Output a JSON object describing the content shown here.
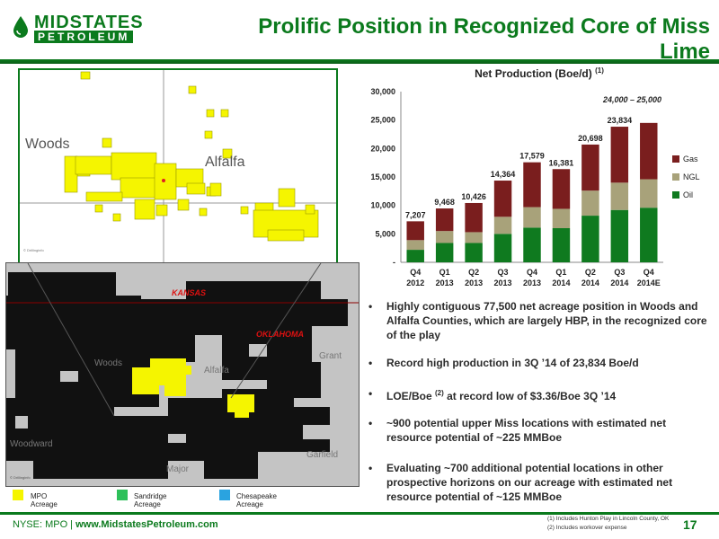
{
  "header": {
    "logo_line1": "MIDSTATES",
    "logo_line2": "PETROLEUM",
    "title": "Prolific Position in Recognized Core of Miss Lime"
  },
  "map_top": {
    "label_woods": "Woods",
    "label_alfalfa": "Alfalfa"
  },
  "map_bottom": {
    "label_kansas": "KANSAS",
    "label_oklahoma": "OKLAHOMA",
    "label_woods": "Woods",
    "label_alfalfa": "Alfalfa",
    "label_grant": "Grant",
    "label_woodward": "Woodward",
    "label_major": "Major",
    "label_garfield": "Garfield"
  },
  "legend": {
    "items": [
      {
        "label": "MPO Acreage",
        "color": "#f5f500"
      },
      {
        "label": "Sandridge  Acreage",
        "color": "#2ec05a"
      },
      {
        "label": "Chesapeake Acreage",
        "color": "#2aa3e0"
      }
    ]
  },
  "colors": {
    "brand_green": "#0b7a1d",
    "gas": "#7a1e1e",
    "ngl": "#a8a27a",
    "oil": "#0f7a1f"
  },
  "chart_data": {
    "type": "bar",
    "stacked": true,
    "title": "Net Production (Boe/d)",
    "title_sup": "(1)",
    "categories": [
      [
        "Q4",
        "2012"
      ],
      [
        "Q1",
        "2013"
      ],
      [
        "Q2",
        "2013"
      ],
      [
        "Q3",
        "2013"
      ],
      [
        "Q4",
        "2013"
      ],
      [
        "Q1",
        "2014"
      ],
      [
        "Q2",
        "2014"
      ],
      [
        "Q3",
        "2014"
      ],
      [
        "Q4",
        "2014E"
      ]
    ],
    "totals_labels": [
      "7,207",
      "9,468",
      "10,426",
      "14,364",
      "17,579",
      "16,381",
      "20,698",
      "23,834"
    ],
    "annotation": "24,000 – 25,000",
    "ylim": [
      0,
      30000
    ],
    "yticks": [
      0,
      5000,
      10000,
      15000,
      20000,
      25000,
      30000
    ],
    "ytick_labels": [
      "-",
      "5,000",
      "10,000",
      "15,000",
      "20,000",
      "25,000",
      "30,000"
    ],
    "series": [
      {
        "name": "Oil",
        "color": "#0f7a1f",
        "values": [
          2200,
          3400,
          3400,
          5000,
          6100,
          6000,
          8200,
          9200,
          9600
        ]
      },
      {
        "name": "NGL",
        "color": "#a8a27a",
        "values": [
          1700,
          2100,
          1900,
          3000,
          3600,
          3400,
          4400,
          4800,
          5000
        ]
      },
      {
        "name": "Gas",
        "color": "#7a1e1e",
        "values": [
          3307,
          3968,
          5126,
          6364,
          7879,
          6981,
          8098,
          9834,
          9900
        ]
      }
    ],
    "legend_order": [
      "Gas",
      "NGL",
      "Oil"
    ],
    "legend_position": "right"
  },
  "bullets": [
    {
      "text": "Highly contiguous 77,500 net acreage position in Woods and Alfalfa Counties, which are largely HBP, in the recognized core of the play"
    },
    {
      "text": "Record high production in 3Q ’14 of 23,834 Boe/d"
    },
    {
      "pre": "LOE/Boe ",
      "sup": "(2)",
      "post": " at record low of $3.36/Boe 3Q ’14"
    },
    {
      "text": "~900 potential upper Miss locations with estimated net resource potential of ~225 MMBoe"
    },
    {
      "text": "Evaluating ~700 additional potential locations in other prospective horizons on our acreage with estimated net resource potential of ~125 MMBoe"
    }
  ],
  "footer": {
    "ticker": "NYSE: MPO | ",
    "website": "www.MidstatesPetroleum.com",
    "footnote1": "(1) Includes Hunton Play in Lincoln County, OK",
    "footnote2": "(2) Includes workover expense",
    "page_number": "17"
  }
}
